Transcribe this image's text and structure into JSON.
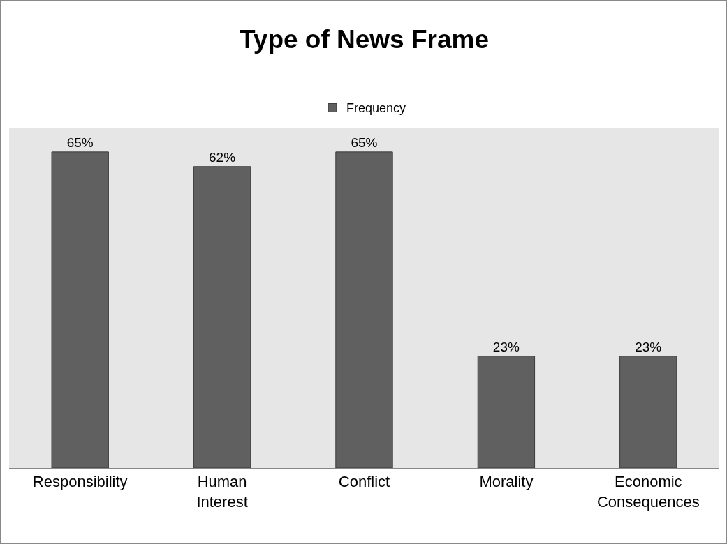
{
  "chart_data": {
    "type": "bar",
    "title": "Type of News Frame",
    "categories": [
      "Responsibility",
      "Human Interest",
      "Conflict",
      "Morality",
      "Economic Consequences"
    ],
    "series": [
      {
        "name": "Frequency",
        "color": "#606060",
        "values": [
          65,
          62,
          65,
          23,
          23
        ],
        "value_labels": [
          "65%",
          "62%",
          "65%",
          "23%",
          "23%"
        ]
      }
    ],
    "ylim": [
      0,
      70
    ],
    "tick_labels": "x",
    "grid": false,
    "legend": "top"
  }
}
